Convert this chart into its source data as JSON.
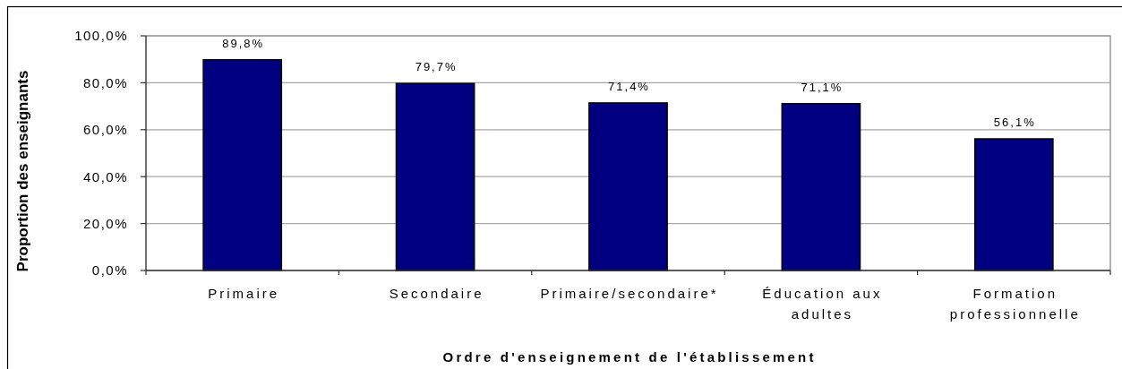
{
  "chart_data": {
    "type": "bar",
    "xlabel": "Ordre d'enseignement de l'établissement",
    "ylabel": "Proportion des enseignants",
    "categories": [
      "Primaire",
      "Secondaire",
      "Primaire/secondaire*",
      "Éducation aux adultes",
      "Formation professionnelle"
    ],
    "values": [
      89.8,
      79.7,
      71.4,
      71.1,
      56.1
    ],
    "value_labels": [
      "89,8%",
      "79,7%",
      "71,4%",
      "71,1%",
      "56,1%"
    ],
    "color": "#000080",
    "ylim": [
      0,
      100
    ],
    "yticks": [
      {
        "value": 0,
        "label": "0,0%"
      },
      {
        "value": 20,
        "label": "20,0%"
      },
      {
        "value": 40,
        "label": "40,0%"
      },
      {
        "value": 60,
        "label": "60,0%"
      },
      {
        "value": 80,
        "label": "80,0%"
      },
      {
        "value": 100,
        "label": "100,0%"
      }
    ],
    "grid": "y"
  }
}
